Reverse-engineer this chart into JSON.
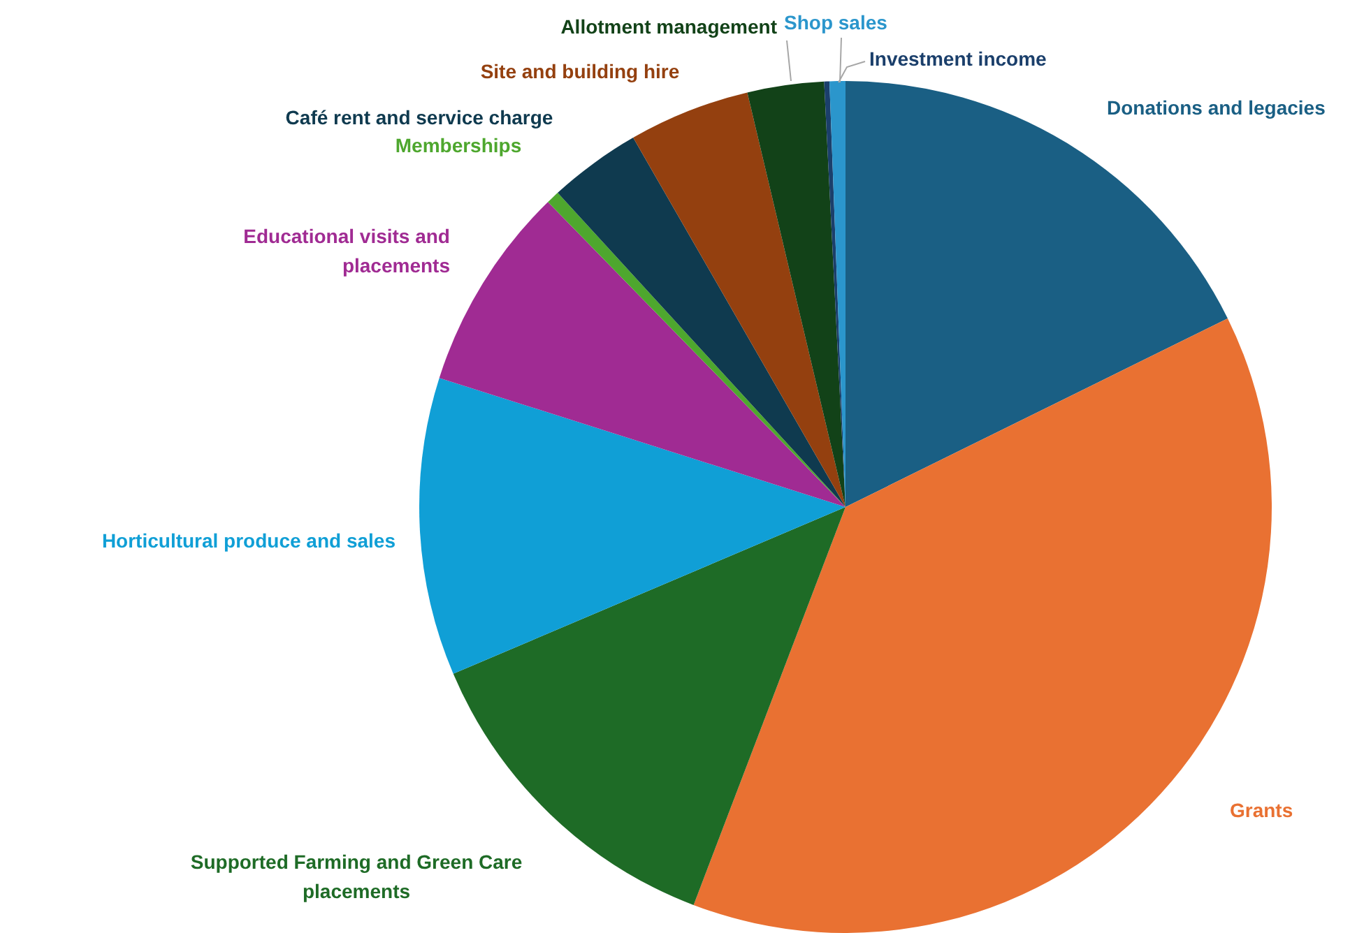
{
  "chart_data": {
    "type": "pie",
    "categories": [
      "Donations and legacies",
      "Grants",
      "Supported Farming and Green Care placements",
      "Horticultural produce and sales",
      "Educational visits and placements",
      "Memberships",
      "Café rent and service charge",
      "Site and building hire",
      "Allotment management",
      "Investment income",
      "Shop sales"
    ],
    "values": [
      17.7,
      38.1,
      12.8,
      11.3,
      7.8,
      0.5,
      3.5,
      4.6,
      2.9,
      0.2,
      0.6
    ],
    "colors": [
      "#1a5f84",
      "#e97132",
      "#1e6b26",
      "#109fd6",
      "#a02b93",
      "#4ea72e",
      "#0f3a4f",
      "#94400f",
      "#124218",
      "#1b3f6b",
      "#2b96cc"
    ],
    "legend": false
  }
}
